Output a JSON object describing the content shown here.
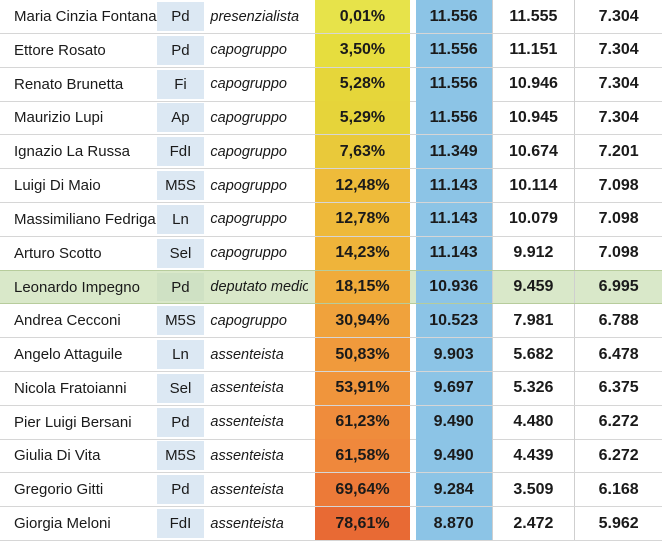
{
  "rows": [
    {
      "name": "Maria Cinzia Fontana",
      "party": "Pd",
      "role": "presenzialista",
      "pct": "0,01%",
      "amt1": "11.556",
      "amt2": "11.555",
      "amt3": "7.304",
      "color": "#e7e34a"
    },
    {
      "name": "Ettore Rosato",
      "party": "Pd",
      "role": "capogruppo",
      "pct": "3,50%",
      "amt1": "11.556",
      "amt2": "11.151",
      "amt3": "7.304",
      "color": "#e6dd3e"
    },
    {
      "name": "Renato Brunetta",
      "party": "Fi",
      "role": "capogruppo",
      "pct": "5,28%",
      "amt1": "11.556",
      "amt2": "10.946",
      "amt3": "7.304",
      "color": "#e6d63a"
    },
    {
      "name": "Maurizio Lupi",
      "party": "Ap",
      "role": "capogruppo",
      "pct": "5,29%",
      "amt1": "11.556",
      "amt2": "10.945",
      "amt3": "7.304",
      "color": "#e6d43a"
    },
    {
      "name": "Ignazio La Russa",
      "party": "FdI",
      "role": "capogruppo",
      "pct": "7,63%",
      "amt1": "11.349",
      "amt2": "10.674",
      "amt3": "7.201",
      "color": "#e9c93a"
    },
    {
      "name": "Luigi Di Maio",
      "party": "M5S",
      "role": "capogruppo",
      "pct": "12,48%",
      "amt1": "11.143",
      "amt2": "10.114",
      "amt3": "7.098",
      "color": "#eebb3a"
    },
    {
      "name": "Massimiliano Fedriga",
      "party": "Ln",
      "role": "capogruppo",
      "pct": "12,78%",
      "amt1": "11.143",
      "amt2": "10.079",
      "amt3": "7.098",
      "color": "#eeb93a"
    },
    {
      "name": "Arturo Scotto",
      "party": "Sel",
      "role": "capogruppo",
      "pct": "14,23%",
      "amt1": "11.143",
      "amt2": "9.912",
      "amt3": "7.098",
      "color": "#efb43a"
    },
    {
      "name": "Leonardo Impegno",
      "party": "Pd",
      "role": "deputato medio",
      "pct": "18,15%",
      "amt1": "10.936",
      "amt2": "9.459",
      "amt3": "6.995",
      "color": "#f0ab3a",
      "highlight": true
    },
    {
      "name": "Andrea Cecconi",
      "party": "M5S",
      "role": "capogruppo",
      "pct": "30,94%",
      "amt1": "10.523",
      "amt2": "7.981",
      "amt3": "6.788",
      "color": "#f0a23c"
    },
    {
      "name": "Angelo Attaguile",
      "party": "Ln",
      "role": "assenteista",
      "pct": "50,83%",
      "amt1": "9.903",
      "amt2": "5.682",
      "amt3": "6.478",
      "color": "#f09a3c"
    },
    {
      "name": "Nicola Fratoianni",
      "party": "Sel",
      "role": "assenteista",
      "pct": "53,91%",
      "amt1": "9.697",
      "amt2": "5.326",
      "amt3": "6.375",
      "color": "#f0953c"
    },
    {
      "name": "Pier Luigi Bersani",
      "party": "Pd",
      "role": "assenteista",
      "pct": "61,23%",
      "amt1": "9.490",
      "amt2": "4.480",
      "amt3": "6.272",
      "color": "#ef8c3c"
    },
    {
      "name": "Giulia Di Vita",
      "party": "M5S",
      "role": "assenteista",
      "pct": "61,58%",
      "amt1": "9.490",
      "amt2": "4.439",
      "amt3": "6.272",
      "color": "#ef883c"
    },
    {
      "name": "Gregorio Gitti",
      "party": "Pd",
      "role": "assenteista",
      "pct": "69,64%",
      "amt1": "9.284",
      "amt2": "3.509",
      "amt3": "6.168",
      "color": "#ec7a38"
    },
    {
      "name": "Giorgia Meloni",
      "party": "FdI",
      "role": "assenteista",
      "pct": "78,61%",
      "amt1": "8.870",
      "amt2": "2.472",
      "amt3": "5.962",
      "color": "#e86a34"
    }
  ]
}
